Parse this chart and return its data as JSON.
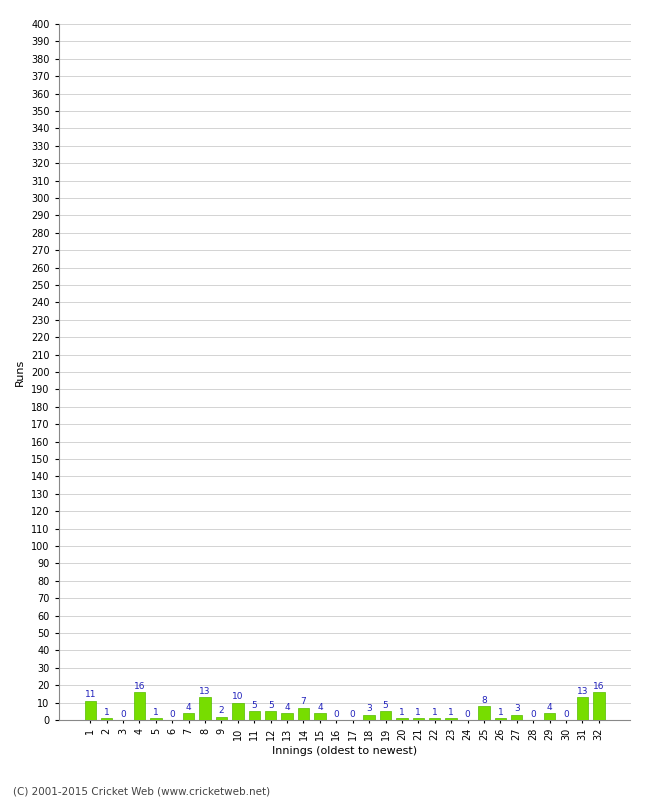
{
  "title": "",
  "xlabel": "Innings (oldest to newest)",
  "ylabel": "Runs",
  "values": [
    11,
    1,
    0,
    16,
    1,
    0,
    4,
    13,
    2,
    10,
    5,
    5,
    4,
    7,
    4,
    0,
    0,
    3,
    5,
    1,
    1,
    1,
    1,
    0,
    8,
    1,
    3,
    0,
    4,
    0,
    13,
    16
  ],
  "bar_color": "#77dd00",
  "bar_edge_color": "#55bb00",
  "label_color": "#2222bb",
  "label_fontsize": 6.5,
  "ylabel_fontsize": 8,
  "xlabel_fontsize": 8,
  "tick_fontsize": 7,
  "ylim": [
    0,
    400
  ],
  "ytick_step": 10,
  "background_color": "#ffffff",
  "grid_color": "#cccccc",
  "footer": "(C) 2001-2015 Cricket Web (www.cricketweb.net)",
  "footer_fontsize": 7.5
}
